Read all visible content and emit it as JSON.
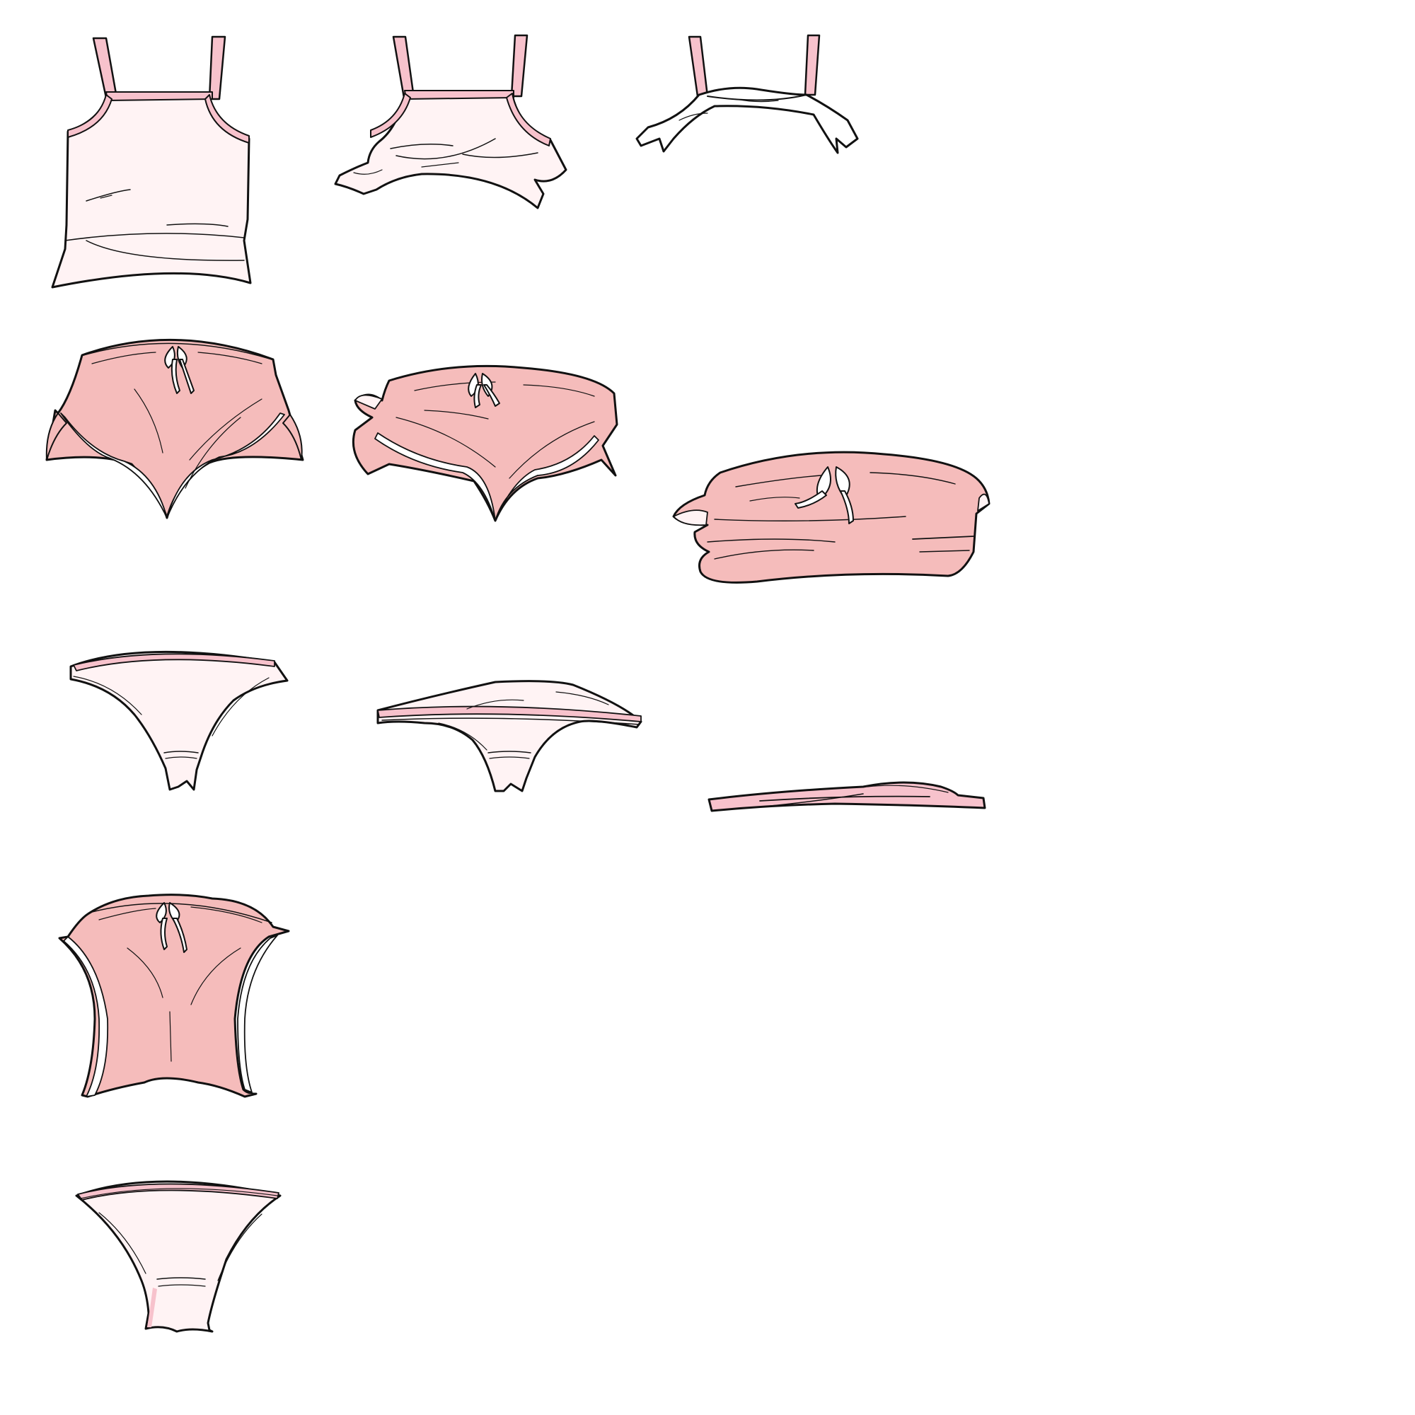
{
  "sheet": {
    "background": "#ffffff",
    "colors": {
      "outline": "#111111",
      "light_fabric": "#fff3f4",
      "pink_trim": "#f7c2cc",
      "salmon_fabric": "#f5bcbb",
      "bow": "#ffffff"
    },
    "rows": [
      {
        "garment": "camisole",
        "frames": [
          {
            "state": "intact"
          },
          {
            "state": "torn"
          },
          {
            "state": "shredded"
          }
        ]
      },
      {
        "garment": "bloomers",
        "frames": [
          {
            "state": "intact"
          },
          {
            "state": "sagging"
          },
          {
            "state": "bunched"
          }
        ]
      },
      {
        "garment": "thong",
        "frames": [
          {
            "state": "intact"
          },
          {
            "state": "folded"
          },
          {
            "state": "flattened"
          }
        ]
      },
      {
        "garment": "bloomers-back",
        "frames": [
          {
            "state": "intact"
          }
        ]
      },
      {
        "garment": "briefs-back",
        "frames": [
          {
            "state": "intact"
          }
        ]
      }
    ]
  }
}
